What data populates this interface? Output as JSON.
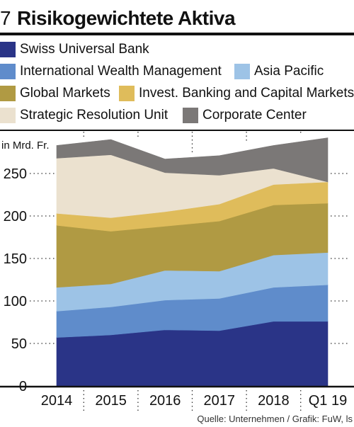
{
  "header": {
    "number": "7",
    "title": "Risikogewichtete Aktiva"
  },
  "legend": [
    {
      "label": "Swiss Universal Bank",
      "color": "#2a3487"
    },
    {
      "label": "International Wealth Management",
      "color": "#5f8ccb"
    },
    {
      "label": "Asia Pacific",
      "color": "#9dc3e6"
    },
    {
      "label": "Global Markets",
      "color": "#b09a43"
    },
    {
      "label": "Invest. Banking and Capital Markets",
      "color": "#dfbc5b"
    },
    {
      "label": "Strategic Resolution Unit",
      "color": "#ebe1cf"
    },
    {
      "label": "Corporate Center",
      "color": "#7b7877"
    }
  ],
  "source": "Quelle: Unternehmen / Grafik: FuW, ls",
  "chart_data": {
    "type": "area",
    "stacked": true,
    "ylabel": "in Mrd. Fr.",
    "ylim": [
      0,
      290
    ],
    "yticks": [
      0,
      50,
      100,
      150,
      200,
      250
    ],
    "categories": [
      "2014",
      "2015",
      "2016",
      "2017",
      "2018",
      "Q1 19"
    ],
    "series": [
      {
        "name": "Swiss Universal Bank",
        "color": "#2a3487",
        "values": [
          57,
          60,
          66,
          65,
          76,
          76
        ]
      },
      {
        "name": "International Wealth Management",
        "color": "#5f8ccb",
        "values": [
          31,
          33,
          35,
          38,
          40,
          43
        ]
      },
      {
        "name": "Asia Pacific",
        "color": "#9dc3e6",
        "values": [
          28,
          27,
          35,
          32,
          38,
          38
        ]
      },
      {
        "name": "Global Markets",
        "color": "#b09a43",
        "values": [
          73,
          62,
          52,
          59,
          59,
          58
        ]
      },
      {
        "name": "Invest. Banking and Capital Markets",
        "color": "#dfbc5b",
        "values": [
          14,
          16,
          17,
          20,
          24,
          25
        ]
      },
      {
        "name": "Strategic Resolution Unit",
        "color": "#ebe1cf",
        "values": [
          65,
          74,
          46,
          34,
          19,
          0
        ]
      },
      {
        "name": "Corporate Center",
        "color": "#7b7877",
        "values": [
          15,
          18,
          16,
          23,
          27,
          52
        ]
      }
    ]
  }
}
